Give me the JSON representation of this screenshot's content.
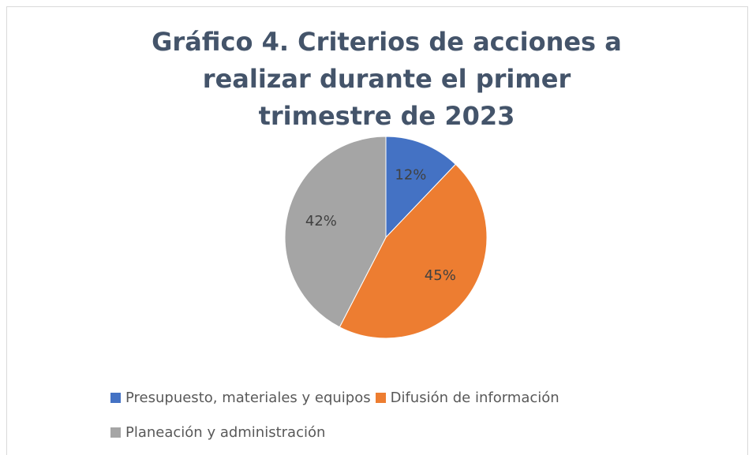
{
  "chart_data": {
    "type": "pie",
    "title": "Gráfico 4. Criterios de acciones a realizar durante el primer trimestre de 2023",
    "categories": [
      "Presupuesto, materiales y equipos",
      "Difusión de información",
      "Planeación y administración"
    ],
    "values": [
      12,
      45,
      42
    ],
    "value_labels": [
      "12%",
      "45%",
      "42%"
    ],
    "colors": [
      "#4472c4",
      "#ed7d31",
      "#a5a5a5"
    ],
    "legend": "bottom"
  }
}
